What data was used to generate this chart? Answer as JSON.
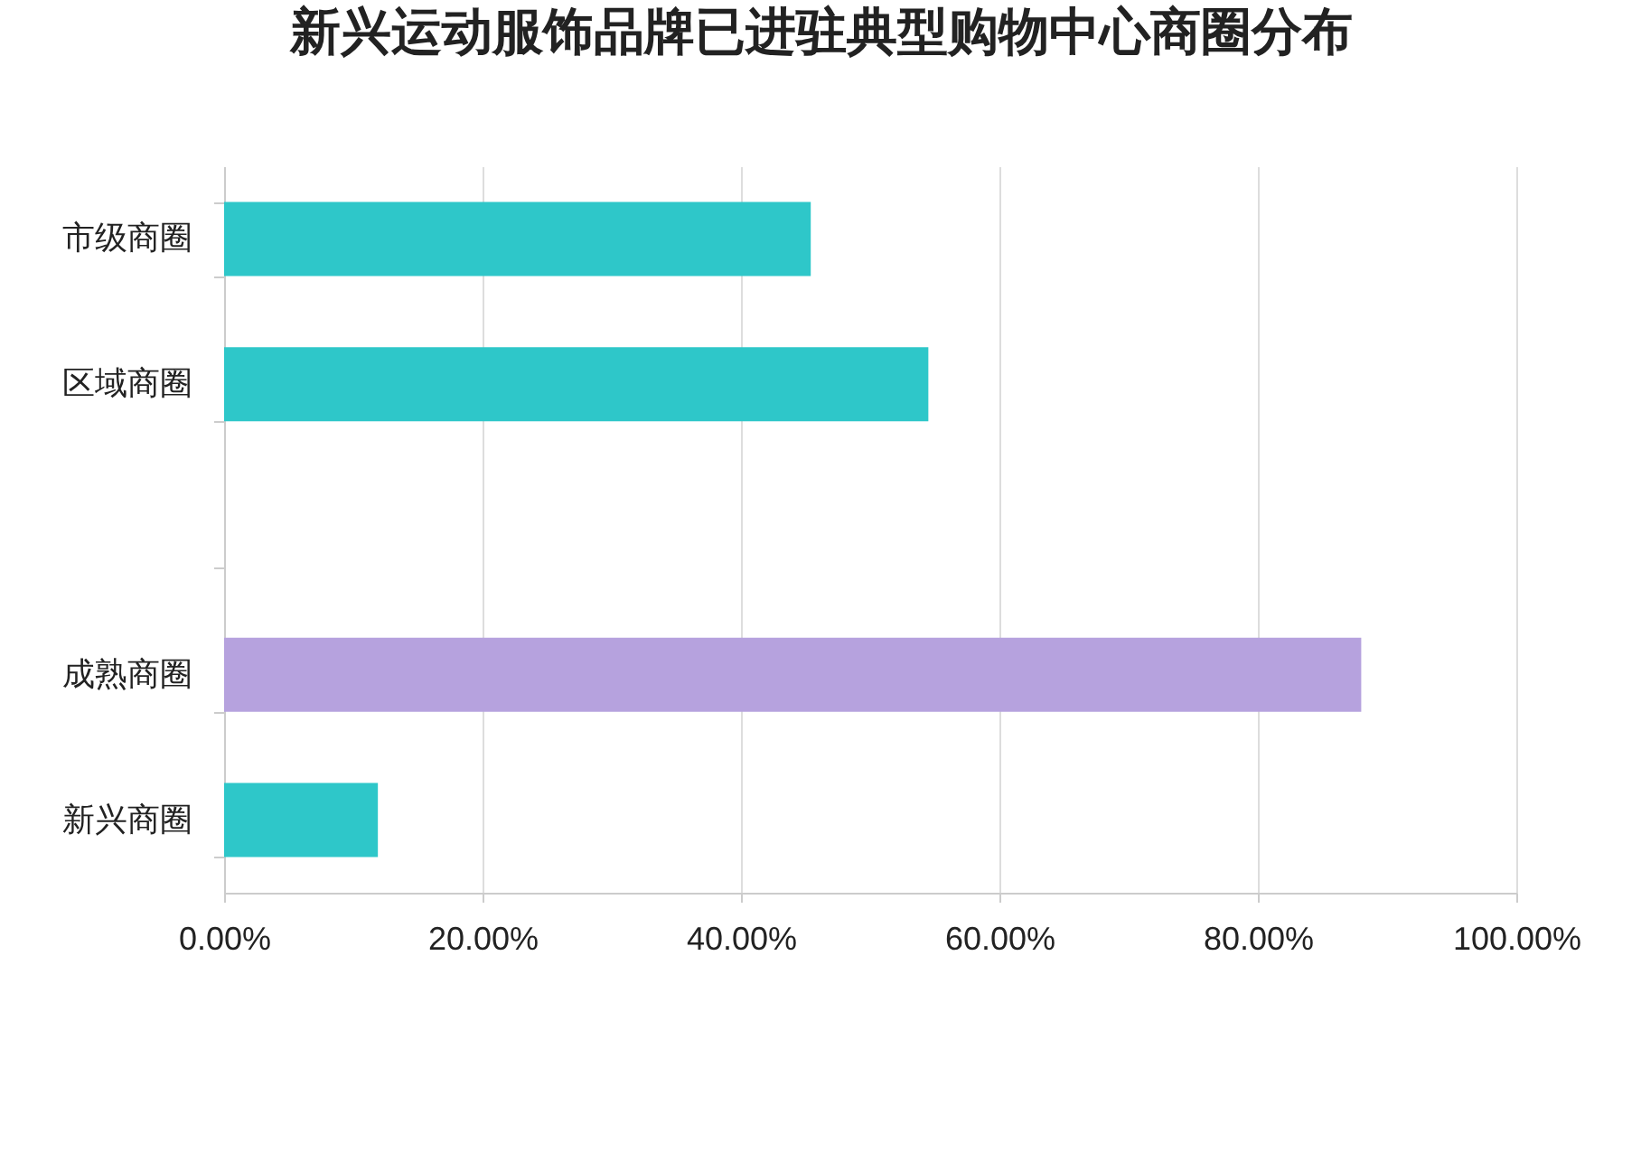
{
  "chart_data": {
    "type": "bar",
    "title": "新兴运动服饰品牌已进驻典型购物中心商圈分布",
    "orientation": "horizontal",
    "categories": [
      "市级商圈",
      "区域商圈",
      null,
      "成熟商圈",
      "新兴商圈"
    ],
    "values": [
      45.4,
      54.5,
      null,
      88.0,
      11.9
    ],
    "colors": [
      "#2ec7c9",
      "#2ec7c9",
      null,
      "#b6a2de",
      "#2ec7c9"
    ],
    "xlim": [
      0,
      100
    ],
    "xticks": [
      {
        "value": 0,
        "label": "0.00%"
      },
      {
        "value": 20,
        "label": "20.00%"
      },
      {
        "value": 40,
        "label": "40.00%"
      },
      {
        "value": 60,
        "label": "60.00%"
      },
      {
        "value": 80,
        "label": "80.00%"
      },
      {
        "value": 100,
        "label": "100.00%"
      }
    ],
    "grid": "x"
  }
}
